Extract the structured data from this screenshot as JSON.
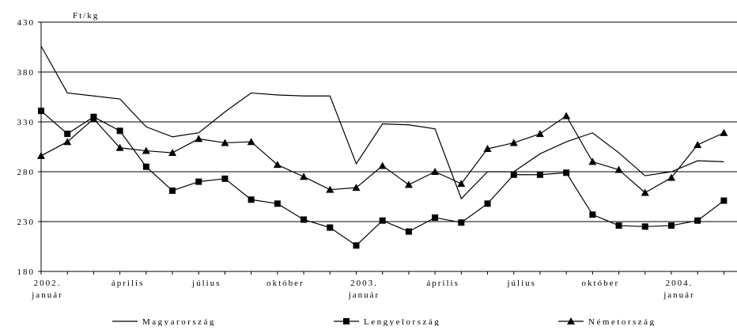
{
  "chart_data": {
    "type": "line",
    "unit_label": "Ft/kg",
    "ylim": [
      180,
      430
    ],
    "yticks": [
      180,
      230,
      280,
      330,
      380,
      430
    ],
    "grid": true,
    "legend_position": "bottom",
    "x_tick_labels": [
      {
        "index": 0,
        "lines": [
          "2002.",
          "január"
        ]
      },
      {
        "index": 3,
        "lines": [
          "április"
        ]
      },
      {
        "index": 6,
        "lines": [
          "július"
        ]
      },
      {
        "index": 9,
        "lines": [
          "október"
        ]
      },
      {
        "index": 12,
        "lines": [
          "2003.",
          "január"
        ]
      },
      {
        "index": 15,
        "lines": [
          "április"
        ]
      },
      {
        "index": 18,
        "lines": [
          "július"
        ]
      },
      {
        "index": 21,
        "lines": [
          "október"
        ]
      },
      {
        "index": 24,
        "lines": [
          "2004.",
          "január"
        ]
      }
    ],
    "x": [
      "2002-01",
      "2002-02",
      "2002-03",
      "2002-04",
      "2002-05",
      "2002-06",
      "2002-07",
      "2002-08",
      "2002-09",
      "2002-10",
      "2002-11",
      "2002-12",
      "2003-01",
      "2003-02",
      "2003-03",
      "2003-04",
      "2003-05",
      "2003-06",
      "2003-07",
      "2003-08",
      "2003-09",
      "2003-10",
      "2003-11",
      "2003-12",
      "2004-01",
      "2004-02",
      "2004-03"
    ],
    "series": [
      {
        "name": "Magyarország",
        "marker": "none",
        "values": [
          406,
          359,
          356,
          353,
          325,
          315,
          319,
          340,
          359,
          357,
          356,
          356,
          288,
          328,
          327,
          323,
          253,
          280,
          280,
          298,
          310,
          319,
          299,
          276,
          280,
          291,
          290
        ]
      },
      {
        "name": "Lengyelország",
        "marker": "square",
        "values": [
          341,
          318,
          335,
          321,
          285,
          261,
          270,
          273,
          252,
          248,
          232,
          224,
          206,
          231,
          220,
          234,
          229,
          248,
          277,
          277,
          279,
          237,
          226,
          225,
          226,
          231,
          251
        ]
      },
      {
        "name": "Németország",
        "marker": "triangle",
        "values": [
          296,
          310,
          333,
          304,
          301,
          299,
          313,
          309,
          310,
          287,
          275,
          262,
          264,
          286,
          267,
          280,
          268,
          303,
          309,
          318,
          336,
          290,
          282,
          259,
          274,
          307,
          319
        ]
      }
    ]
  }
}
